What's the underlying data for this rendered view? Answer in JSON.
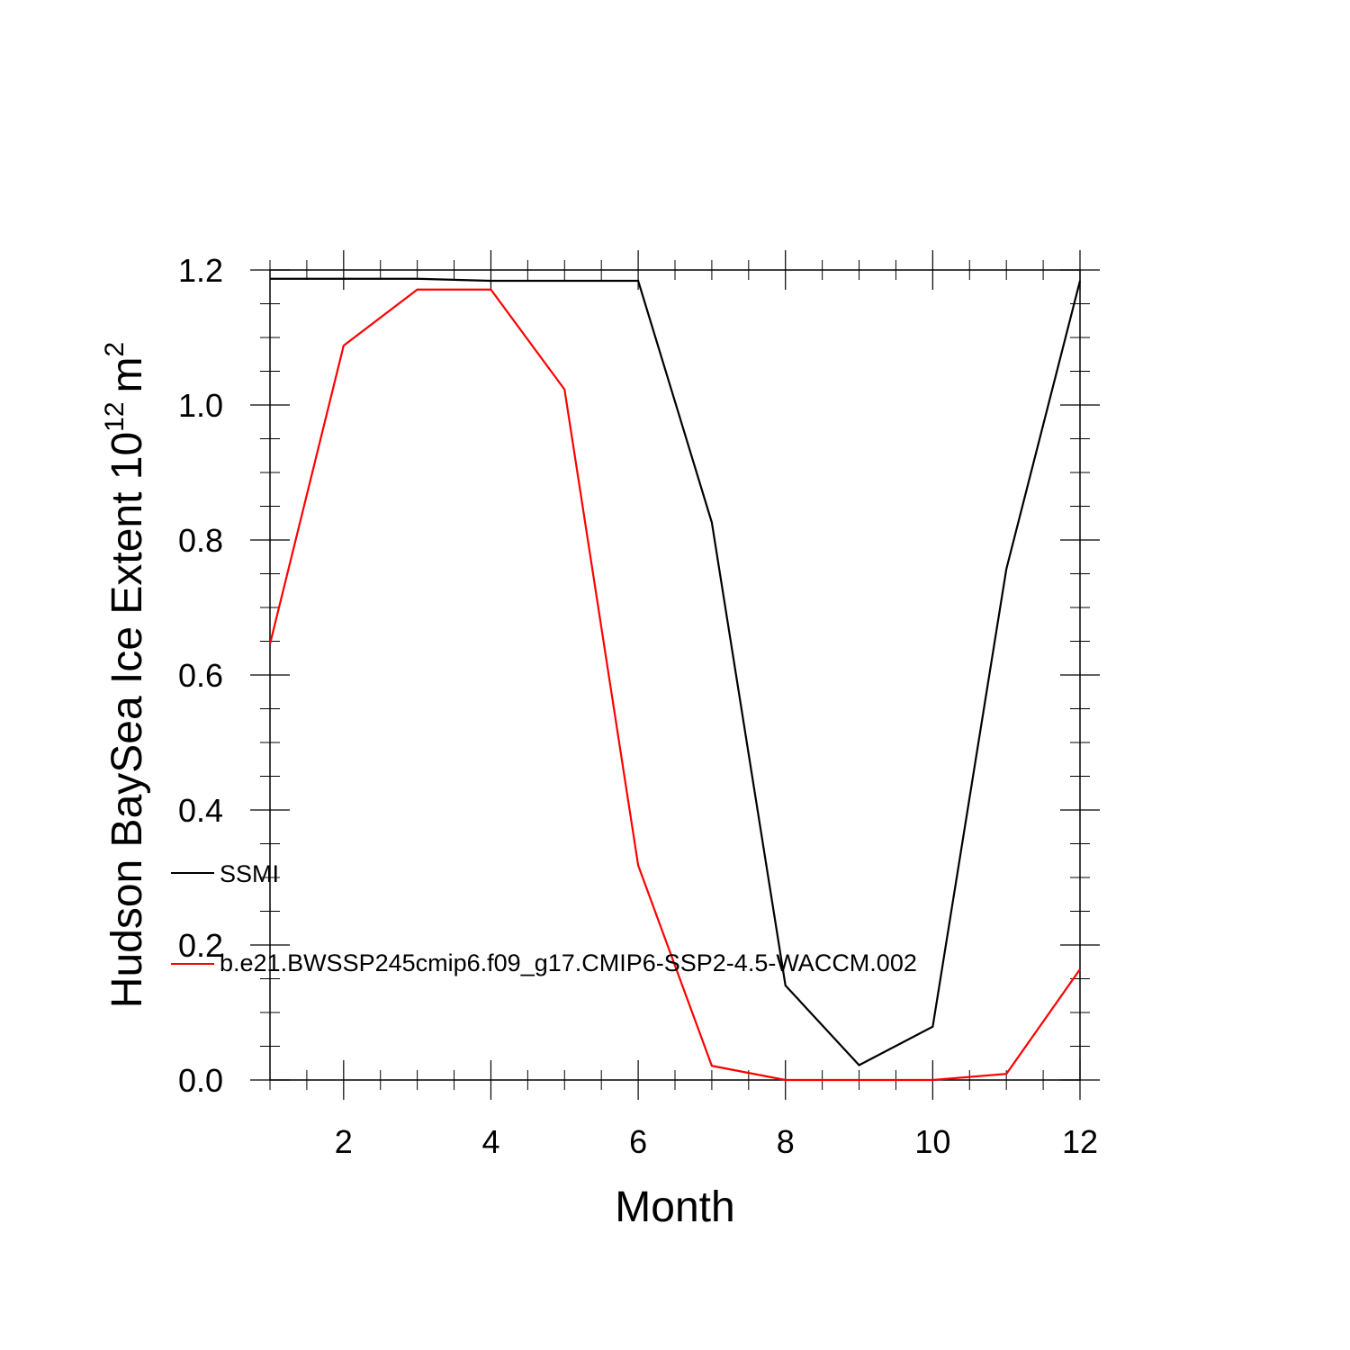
{
  "chart_data": {
    "type": "line",
    "xlabel": "Month",
    "ylabel": "Hudson BaySea Ice Extent 10",
    "ylabel_exponent": "12",
    "ylabel_unit": "m",
    "ylabel_unit_exponent": "2",
    "xlim": [
      1,
      12
    ],
    "ylim": [
      0.0,
      1.2
    ],
    "xticks": [
      2,
      4,
      6,
      8,
      10,
      12
    ],
    "xtick_labels": [
      "2",
      "4",
      "6",
      "8",
      "10",
      "12"
    ],
    "yticks": [
      0.0,
      0.2,
      0.4,
      0.6,
      0.8,
      1.0,
      1.2
    ],
    "ytick_labels": [
      "0.0",
      "0.2",
      "0.4",
      "0.6",
      "0.8",
      "1.0",
      "1.2"
    ],
    "grid": false,
    "legend_position": "lower-left",
    "x": [
      1,
      2,
      3,
      4,
      5,
      6,
      7,
      8,
      9,
      10,
      11,
      12
    ],
    "series": [
      {
        "name": "SSMI",
        "color": "#000000",
        "values": [
          1.187,
          1.187,
          1.187,
          1.184,
          1.184,
          1.184,
          0.826,
          0.14,
          0.022,
          0.079,
          0.757,
          1.184
        ]
      },
      {
        "name": "b.e21.BWSSP245cmip6.f09_g17.CMIP6-SSP2-4.5-WACCM.002",
        "color": "#ff0000",
        "values": [
          0.646,
          1.088,
          1.171,
          1.171,
          1.023,
          0.318,
          0.021,
          0.0,
          0.0,
          0.0,
          0.009,
          0.164
        ]
      }
    ]
  }
}
